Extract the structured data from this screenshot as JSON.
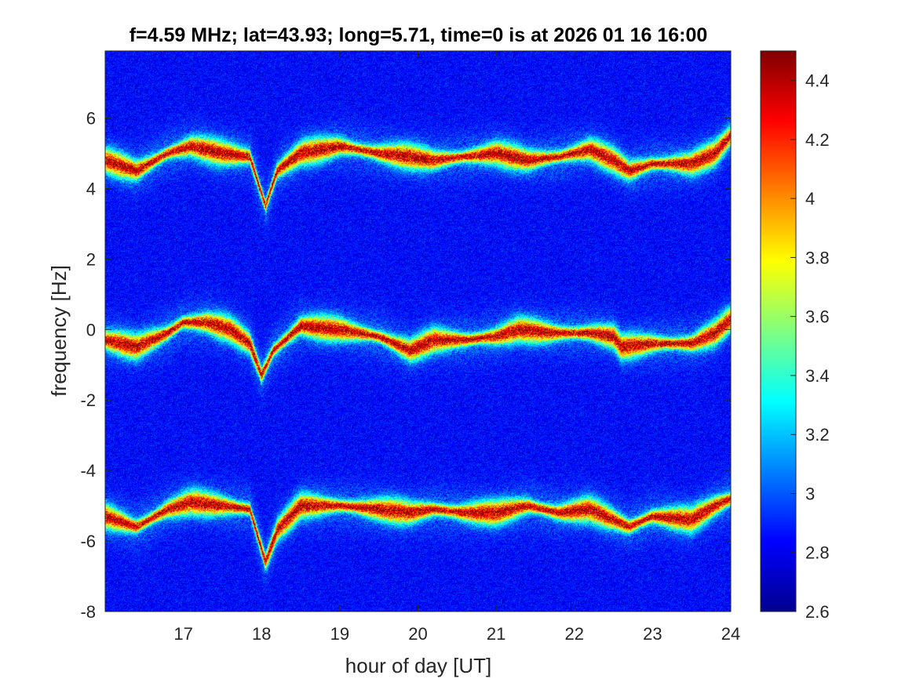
{
  "chart_data": {
    "type": "heatmap",
    "title": "f=4.59 MHz;  lat=43.93; long=5.71, time=0 is at 2026 01 16 16:00",
    "xlabel": "hour of day [UT]",
    "ylabel": "frequency [Hz]",
    "xlim": [
      16.0,
      24.0
    ],
    "ylim": [
      -8,
      7.9
    ],
    "x_ticks": [
      17,
      18,
      19,
      20,
      21,
      22,
      23,
      24
    ],
    "y_ticks": [
      -8,
      -6,
      -4,
      -2,
      0,
      2,
      4,
      6
    ],
    "colorbar": {
      "colormap": "jet",
      "clim": [
        2.6,
        4.5
      ],
      "ticks": [
        2.6,
        2.8,
        3,
        3.2,
        3.4,
        3.6,
        3.8,
        4,
        4.2,
        4.4
      ]
    },
    "background_level": 2.85,
    "traces": [
      {
        "center_hz": 0,
        "points": [
          [
            16.0,
            -0.3
          ],
          [
            16.4,
            -0.5
          ],
          [
            16.8,
            -0.1
          ],
          [
            17.0,
            0.2
          ],
          [
            17.3,
            0.2
          ],
          [
            17.6,
            0.0
          ],
          [
            17.85,
            -0.4
          ],
          [
            18.0,
            -1.3
          ],
          [
            18.15,
            -0.6
          ],
          [
            18.5,
            0.1
          ],
          [
            19.0,
            0.0
          ],
          [
            19.5,
            -0.2
          ],
          [
            19.9,
            -0.6
          ],
          [
            20.2,
            -0.3
          ],
          [
            20.6,
            -0.3
          ],
          [
            21.0,
            -0.2
          ],
          [
            21.3,
            0.0
          ],
          [
            21.7,
            -0.1
          ],
          [
            22.2,
            -0.1
          ],
          [
            22.5,
            -0.2
          ],
          [
            22.6,
            -0.5
          ],
          [
            23.0,
            -0.4
          ],
          [
            23.5,
            -0.4
          ],
          [
            23.8,
            -0.1
          ],
          [
            24.0,
            0.3
          ]
        ]
      },
      {
        "center_hz": 5,
        "points": [
          [
            16.0,
            4.8
          ],
          [
            16.4,
            4.5
          ],
          [
            16.8,
            5.0
          ],
          [
            17.1,
            5.2
          ],
          [
            17.5,
            5.0
          ],
          [
            17.85,
            4.9
          ],
          [
            18.05,
            3.5
          ],
          [
            18.2,
            4.5
          ],
          [
            18.5,
            5.0
          ],
          [
            19.0,
            5.2
          ],
          [
            19.5,
            5.0
          ],
          [
            19.9,
            4.9
          ],
          [
            20.2,
            4.8
          ],
          [
            20.6,
            4.9
          ],
          [
            21.0,
            5.0
          ],
          [
            21.4,
            4.8
          ],
          [
            21.8,
            4.9
          ],
          [
            22.2,
            5.1
          ],
          [
            22.5,
            4.8
          ],
          [
            22.7,
            4.5
          ],
          [
            23.0,
            4.7
          ],
          [
            23.5,
            4.7
          ],
          [
            23.8,
            5.0
          ],
          [
            24.0,
            5.5
          ]
        ]
      },
      {
        "center_hz": -5,
        "points": [
          [
            16.0,
            -5.3
          ],
          [
            16.4,
            -5.6
          ],
          [
            16.8,
            -5.1
          ],
          [
            17.1,
            -4.9
          ],
          [
            17.5,
            -5.0
          ],
          [
            17.85,
            -5.1
          ],
          [
            18.05,
            -6.6
          ],
          [
            18.2,
            -5.7
          ],
          [
            18.5,
            -5.0
          ],
          [
            19.0,
            -5.0
          ],
          [
            19.5,
            -5.1
          ],
          [
            19.9,
            -5.2
          ],
          [
            20.2,
            -5.1
          ],
          [
            20.6,
            -5.2
          ],
          [
            21.0,
            -5.2
          ],
          [
            21.4,
            -5.0
          ],
          [
            21.8,
            -5.2
          ],
          [
            22.2,
            -5.1
          ],
          [
            22.5,
            -5.4
          ],
          [
            22.7,
            -5.6
          ],
          [
            23.0,
            -5.3
          ],
          [
            23.5,
            -5.4
          ],
          [
            23.8,
            -5.0
          ],
          [
            24.0,
            -4.8
          ]
        ]
      }
    ]
  }
}
